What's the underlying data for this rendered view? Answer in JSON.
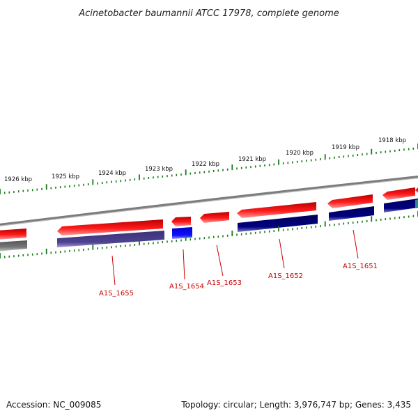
{
  "title": "Acinetobacter baumannii ATCC 17978, complete genome",
  "accession": "Accession: NC_009085",
  "topology": "Topology: circular; Length: 3,976,747 bp; Genes: 3,435",
  "kbp_labels": [
    "1926 kbp",
    "1925 kbp",
    "1924 kbp",
    "1923 kbp",
    "1922 kbp",
    "1921 kbp",
    "1920 kbp",
    "1919 kbp",
    "1918 kbp"
  ],
  "gene_labels": [
    "A1S_1655",
    "A1S_1654",
    "A1S_1653",
    "A1S_1652",
    "A1S_1651"
  ],
  "colors": {
    "forward_gene": "#ee0000",
    "reverse_gene_navy": "#00006e",
    "reverse_gene_purple": "#4a3f8c",
    "reverse_gene_blue": "#0000ee",
    "backbone": "#888888",
    "tick": "#1a7a1a",
    "label": "#cc0000"
  }
}
